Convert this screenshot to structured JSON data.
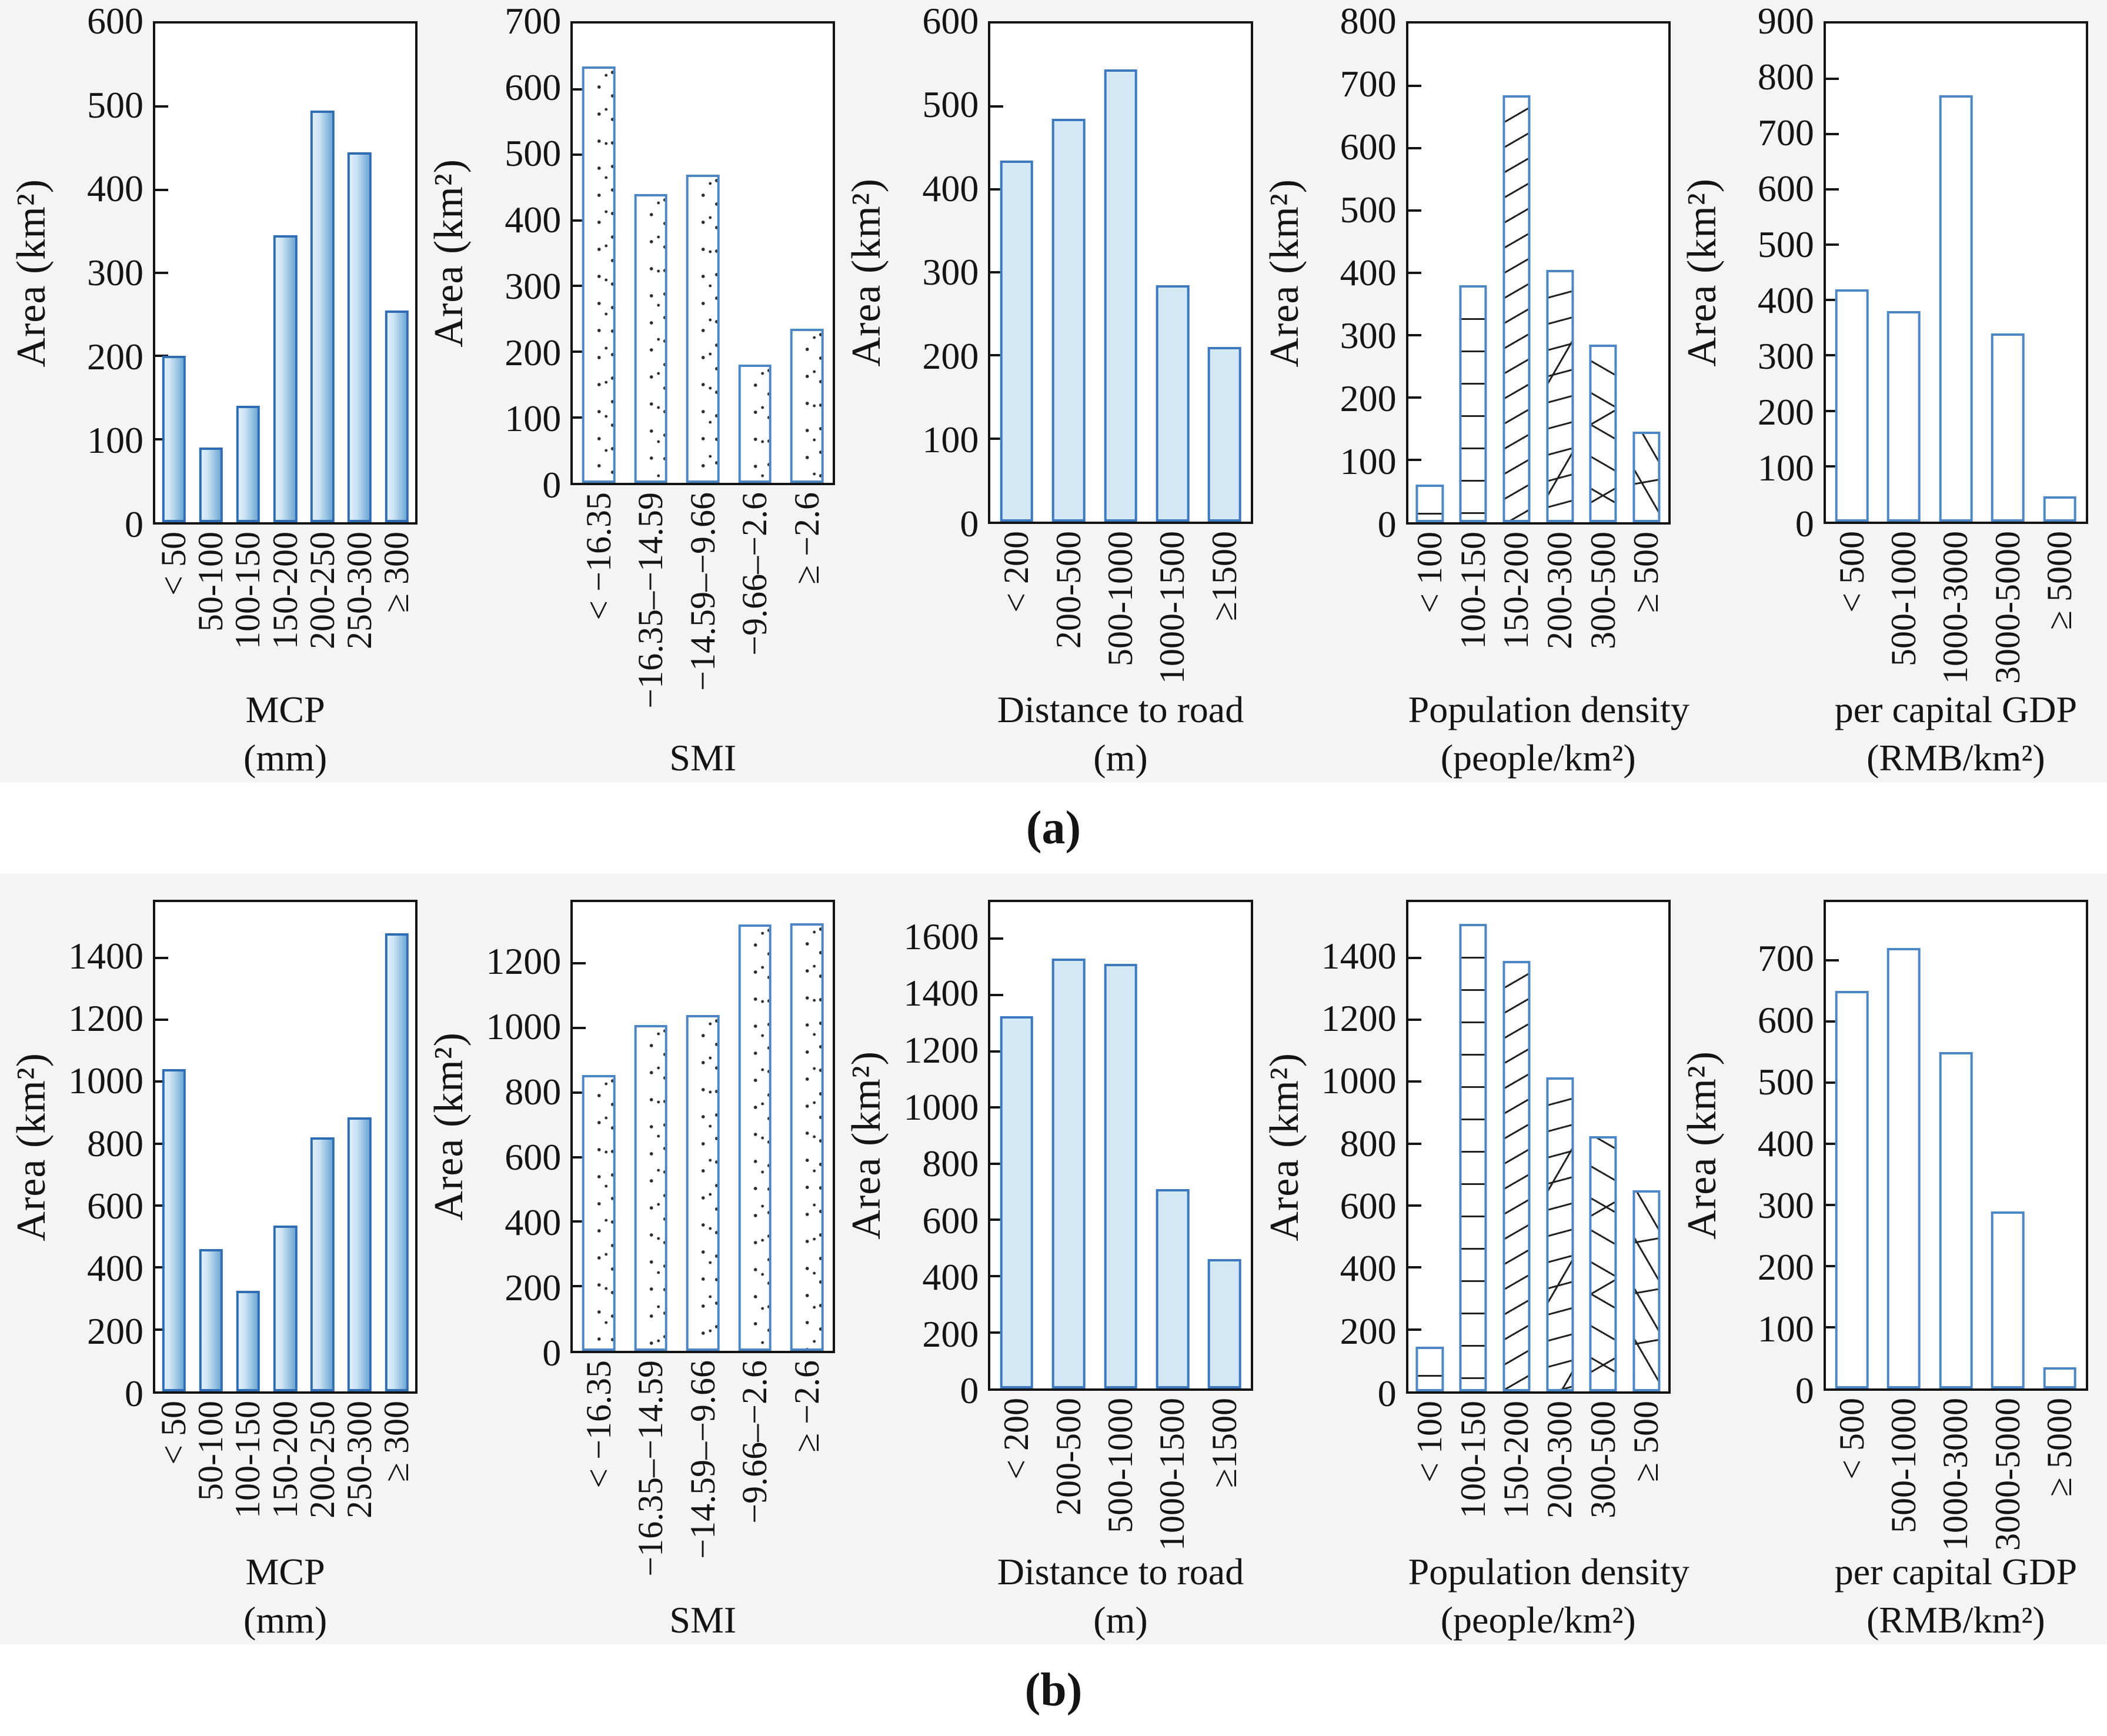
{
  "page": {
    "panel_a_label": "(a)",
    "panel_b_label": "(b)"
  },
  "chart_data": [
    {
      "panel": "a",
      "type": "bar",
      "style": "gradient-blue",
      "title": "MCP (mm)",
      "title_lines": [
        "MCP",
        "(mm)"
      ],
      "ylabel": "Area (km²)",
      "categories": [
        "< 50",
        "50-100",
        "100-150",
        "150-200",
        "200-250",
        "250-300",
        "≥ 300"
      ],
      "values": [
        200,
        90,
        140,
        345,
        495,
        445,
        255
      ],
      "yticks": [
        0,
        100,
        200,
        300,
        400,
        500,
        600
      ],
      "ylim": [
        0,
        600
      ],
      "grid": false,
      "legend": "none"
    },
    {
      "panel": "a",
      "type": "bar",
      "style": "stipple",
      "title": "SMI",
      "title_lines": [
        "SMI"
      ],
      "ylabel": "Area (km²)",
      "categories": [
        "< −16.35",
        "−16.35–−14.59",
        "−14.59–−9.66",
        "−9.66–−2.6",
        "≥ −2.6"
      ],
      "values": [
        635,
        440,
        470,
        180,
        235
      ],
      "yticks": [
        0,
        100,
        200,
        300,
        400,
        500,
        600,
        700
      ],
      "ylim": [
        0,
        700
      ],
      "grid": false,
      "legend": "none"
    },
    {
      "panel": "a",
      "type": "bar",
      "style": "solid-blue",
      "title": "Distance to road (m)",
      "title_lines": [
        "Distance to road",
        "(m)"
      ],
      "ylabel": "Area (km²)",
      "categories": [
        "< 200",
        "200-500",
        "500-1000",
        "1000-1500",
        "≥1500"
      ],
      "values": [
        435,
        485,
        545,
        285,
        210
      ],
      "yticks": [
        0,
        100,
        200,
        300,
        400,
        500,
        600
      ],
      "ylim": [
        0,
        600
      ],
      "grid": false,
      "legend": "none"
    },
    {
      "panel": "a",
      "type": "bar",
      "style": "hatch",
      "title": "Population density (people/km²)",
      "title_lines": [
        "Population density",
        "(people/km²)"
      ],
      "ylabel": "Area (km²)",
      "categories": [
        "< 100",
        "100-150",
        "150-200",
        "200-300",
        "300-500",
        "≥ 500"
      ],
      "values": [
        60,
        380,
        685,
        405,
        285,
        145
      ],
      "yticks": [
        0,
        100,
        200,
        300,
        400,
        500,
        600,
        700,
        800
      ],
      "ylim": [
        0,
        800
      ],
      "grid": false,
      "legend": "none"
    },
    {
      "panel": "a",
      "type": "bar",
      "style": "outline",
      "title": "per capital GDP (RMB/km²)",
      "title_lines": [
        "per capital GDP",
        "(RMB/km²)"
      ],
      "ylabel": "Area (km²)",
      "categories": [
        "< 500",
        "500-1000",
        "1000-3000",
        "3000-5000",
        "≥ 5000"
      ],
      "values": [
        420,
        380,
        770,
        340,
        45
      ],
      "yticks": [
        0,
        100,
        200,
        300,
        400,
        500,
        600,
        700,
        800,
        900
      ],
      "ylim": [
        0,
        900
      ],
      "grid": false,
      "legend": "none"
    },
    {
      "panel": "b",
      "type": "bar",
      "style": "gradient-blue",
      "title": "MCP (mm)",
      "title_lines": [
        "MCP",
        "(mm)"
      ],
      "ylabel": "Area (km²)",
      "categories": [
        "< 50",
        "50-100",
        "100-150",
        "150-200",
        "200-250",
        "250-300",
        "≥ 300"
      ],
      "values": [
        1040,
        460,
        325,
        535,
        820,
        885,
        1480
      ],
      "yticks": [
        0,
        200,
        400,
        600,
        800,
        1000,
        1200,
        1400
      ],
      "ylim": [
        0,
        1580
      ],
      "grid": false,
      "legend": "none"
    },
    {
      "panel": "b",
      "type": "bar",
      "style": "stipple",
      "title": "SMI",
      "title_lines": [
        "SMI"
      ],
      "ylabel": "Area (km²)",
      "categories": [
        "< −16.35",
        "−16.35–−14.59",
        "−14.59–−9.66",
        "−9.66–−2.6",
        "≥ −2.6"
      ],
      "values": [
        855,
        1010,
        1040,
        1320,
        1325
      ],
      "yticks": [
        0,
        200,
        400,
        600,
        800,
        1000,
        1200
      ],
      "ylim": [
        0,
        1390
      ],
      "grid": false,
      "legend": "none"
    },
    {
      "panel": "b",
      "type": "bar",
      "style": "solid-blue",
      "title": "Distance to road (m)",
      "title_lines": [
        "Distance to road",
        "(m)"
      ],
      "ylabel": "Area (km²)",
      "categories": [
        "< 200",
        "200-500",
        "500-1000",
        "1000-1500",
        "≥1500"
      ],
      "values": [
        1325,
        1530,
        1510,
        710,
        460
      ],
      "yticks": [
        0,
        200,
        400,
        600,
        800,
        1000,
        1200,
        1400,
        1600
      ],
      "ylim": [
        0,
        1730
      ],
      "grid": false,
      "legend": "none"
    },
    {
      "panel": "b",
      "type": "bar",
      "style": "hatch",
      "title": "Population density (people/km²)",
      "title_lines": [
        "Population density",
        "(people/km²)"
      ],
      "ylabel": "Area (km²)",
      "categories": [
        "< 100",
        "100-150",
        "150-200",
        "200-300",
        "300-500",
        "≥ 500"
      ],
      "values": [
        145,
        1510,
        1390,
        1015,
        825,
        650
      ],
      "yticks": [
        0,
        200,
        400,
        600,
        800,
        1000,
        1200,
        1400
      ],
      "ylim": [
        0,
        1580
      ],
      "grid": false,
      "legend": "none"
    },
    {
      "panel": "b",
      "type": "bar",
      "style": "outline",
      "title": "per capital GDP (RMB/km²)",
      "title_lines": [
        "per capital GDP",
        "(RMB/km²)"
      ],
      "ylabel": "Area (km²)",
      "categories": [
        "< 500",
        "500-1000",
        "1000-3000",
        "3000-5000",
        "≥ 5000"
      ],
      "values": [
        650,
        720,
        550,
        290,
        35
      ],
      "yticks": [
        0,
        100,
        200,
        300,
        400,
        500,
        600,
        700
      ],
      "ylim": [
        0,
        795
      ],
      "grid": false,
      "legend": "none"
    }
  ]
}
